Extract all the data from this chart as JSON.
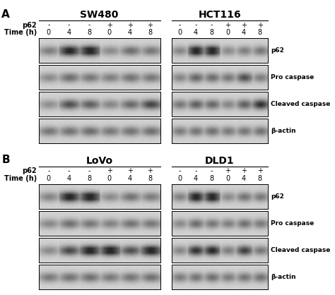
{
  "fig_width": 4.74,
  "fig_height": 4.18,
  "dpi": 100,
  "bg_color": "#ffffff",
  "cell_line_A_left": "SW480",
  "cell_line_A_right": "HCT116",
  "cell_line_B_left": "LoVo",
  "cell_line_B_right": "DLD1",
  "p62_vals": [
    "-",
    "-",
    "-",
    "+",
    "+",
    "+"
  ],
  "time_vals": [
    "0",
    "4",
    "8",
    "0",
    "4",
    "8"
  ],
  "band_labels": [
    "p62",
    "Pro caspase",
    "Cleaved caspase",
    "β-actin"
  ],
  "band_label_fontsize": 6.5,
  "header_fontsize": 10,
  "axis_label_fontsize": 7,
  "panel_label_fontsize": 11,
  "tick_fontsize": 7,
  "panel_A": {
    "left_bands": {
      "p62": [
        0.35,
        0.8,
        0.88,
        0.3,
        0.42,
        0.38
      ],
      "pro": [
        0.3,
        0.42,
        0.38,
        0.35,
        0.4,
        0.38
      ],
      "cleaved": [
        0.28,
        0.55,
        0.48,
        0.32,
        0.44,
        0.6
      ],
      "actin": [
        0.38,
        0.4,
        0.42,
        0.38,
        0.4,
        0.41
      ]
    },
    "right_bands": {
      "p62": [
        0.32,
        0.85,
        0.9,
        0.3,
        0.35,
        0.38
      ],
      "pro": [
        0.32,
        0.45,
        0.42,
        0.38,
        0.55,
        0.35
      ],
      "cleaved": [
        0.38,
        0.48,
        0.45,
        0.32,
        0.48,
        0.68
      ],
      "actin": [
        0.36,
        0.39,
        0.41,
        0.37,
        0.39,
        0.4
      ]
    }
  },
  "panel_B": {
    "left_bands": {
      "p62": [
        0.33,
        0.82,
        0.88,
        0.3,
        0.4,
        0.36
      ],
      "pro": [
        0.31,
        0.41,
        0.38,
        0.34,
        0.4,
        0.38
      ],
      "cleaved": [
        0.3,
        0.58,
        0.85,
        0.88,
        0.55,
        0.85
      ],
      "actin": [
        0.37,
        0.4,
        0.41,
        0.37,
        0.39,
        0.41
      ]
    },
    "right_bands": {
      "p62": [
        0.34,
        0.83,
        0.88,
        0.3,
        0.4,
        0.37
      ],
      "pro": [
        0.3,
        0.42,
        0.38,
        0.35,
        0.41,
        0.37
      ],
      "cleaved": [
        0.32,
        0.68,
        0.75,
        0.35,
        0.62,
        0.38
      ],
      "actin": [
        0.36,
        0.39,
        0.41,
        0.36,
        0.39,
        0.4
      ]
    }
  }
}
